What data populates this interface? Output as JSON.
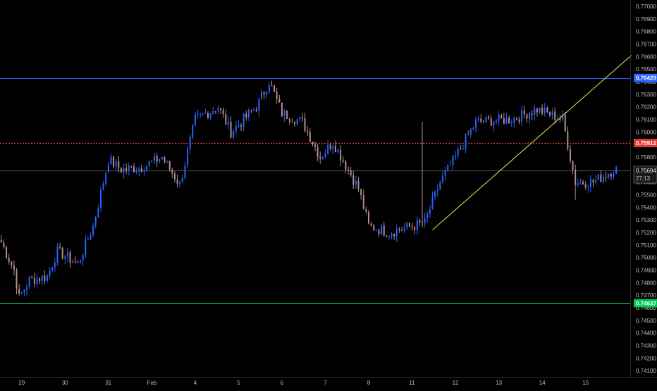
{
  "chart_data": {
    "type": "candlestick",
    "title": "",
    "xlabel": "",
    "ylabel": "",
    "grid": false,
    "ylim": [
      0.7405,
      0.7705
    ],
    "y_ticks": [
      "0.77000",
      "0.76900",
      "0.76800",
      "0.76700",
      "0.76600",
      "0.76500",
      "0.76400",
      "0.76300",
      "0.76200",
      "0.76100",
      "0.76000",
      "0.75900",
      "0.75800",
      "0.75700",
      "0.75600",
      "0.75500",
      "0.75400",
      "0.75300",
      "0.75200",
      "0.75100",
      "0.75000",
      "0.74900",
      "0.74800",
      "0.74700",
      "0.74600",
      "0.74500",
      "0.74400",
      "0.74300",
      "0.74200",
      "0.74100"
    ],
    "x_ticks": [
      "29",
      "30",
      "31",
      "Feb",
      "4",
      "5",
      "6",
      "7",
      "8",
      "11",
      "12",
      "13",
      "14",
      "15"
    ],
    "x_tick_index": [
      8,
      25,
      42,
      59,
      76,
      93,
      110,
      127,
      144,
      161,
      178,
      195,
      212,
      229
    ],
    "n_bars": 242,
    "anchors": [
      [
        0,
        0.7512
      ],
      [
        5,
        0.749
      ],
      [
        7,
        0.7468
      ],
      [
        11,
        0.7482
      ],
      [
        18,
        0.7485
      ],
      [
        22,
        0.7505
      ],
      [
        30,
        0.7495
      ],
      [
        36,
        0.7525
      ],
      [
        42,
        0.7578
      ],
      [
        47,
        0.757
      ],
      [
        55,
        0.7572
      ],
      [
        63,
        0.758
      ],
      [
        70,
        0.7558
      ],
      [
        76,
        0.761
      ],
      [
        85,
        0.762
      ],
      [
        90,
        0.76
      ],
      [
        100,
        0.762
      ],
      [
        105,
        0.764
      ],
      [
        110,
        0.7615
      ],
      [
        118,
        0.7608
      ],
      [
        125,
        0.758
      ],
      [
        130,
        0.7592
      ],
      [
        140,
        0.7555
      ],
      [
        144,
        0.7525
      ],
      [
        152,
        0.752
      ],
      [
        161,
        0.7525
      ],
      [
        166,
        0.7528
      ],
      [
        172,
        0.756
      ],
      [
        178,
        0.758
      ],
      [
        186,
        0.7608
      ],
      [
        200,
        0.761
      ],
      [
        210,
        0.7618
      ],
      [
        220,
        0.761
      ],
      [
        225,
        0.756
      ],
      [
        232,
        0.756
      ],
      [
        240,
        0.757
      ]
    ],
    "horizontal_lines": [
      {
        "name": "resistance-level",
        "price": 0.76429,
        "label": "0.76429",
        "color": "#2962ff",
        "style": "solid"
      },
      {
        "name": "pivot-level",
        "price": 0.75912,
        "label": "0.75912",
        "color": "#e53935",
        "style": "dotted"
      },
      {
        "name": "reference-level",
        "price": 0.75694,
        "label": "",
        "color": "#555555",
        "style": "solid"
      },
      {
        "name": "support-level",
        "price": 0.74637,
        "label": "0.74637",
        "color": "#00c853",
        "style": "solid"
      }
    ],
    "current_price": {
      "value": "0.75694",
      "countdown": "27:13"
    },
    "trendline": {
      "from": [
        169,
        0.7522
      ],
      "to": [
        247,
        0.7661
      ],
      "color": "#f2e35c"
    },
    "colors": {
      "up": "#2962ff",
      "down": "#b38d8a",
      "background": "#000000",
      "axis_text": "#bdbdbd"
    }
  }
}
